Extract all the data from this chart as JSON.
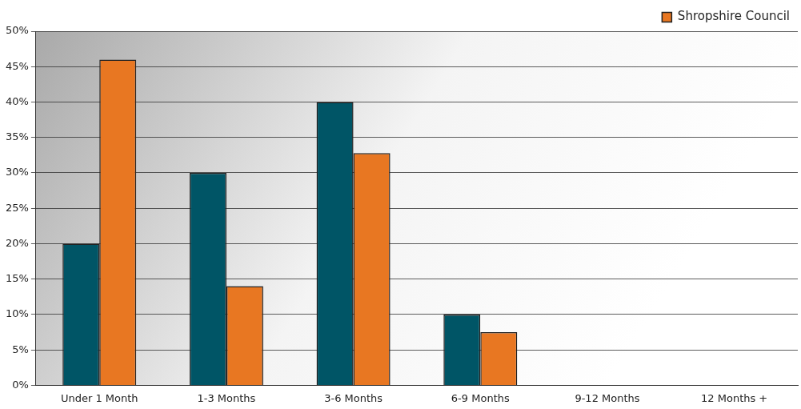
{
  "chart_data": {
    "type": "bar",
    "categories": [
      "Under 1 Month",
      "1-3 Months",
      "3-6 Months",
      "6-9 Months",
      "9-12 Months",
      "12 Months +"
    ],
    "series": [
      {
        "color": "#005566",
        "values": [
          20,
          30,
          40,
          10,
          0,
          0
        ]
      },
      {
        "name": "Shropshire Council",
        "color": "#e87722",
        "values": [
          46,
          14,
          32.8,
          7.5,
          0,
          0
        ]
      }
    ],
    "ylim": [
      0,
      50
    ],
    "yticks": [
      {
        "value": 0,
        "label": "0%"
      },
      {
        "value": 5,
        "label": "5%"
      },
      {
        "value": 10,
        "label": "10%"
      },
      {
        "value": 15,
        "label": "15%"
      },
      {
        "value": 20,
        "label": "20%"
      },
      {
        "value": 25,
        "label": "25%"
      },
      {
        "value": 30,
        "label": "30%"
      },
      {
        "value": 35,
        "label": "35%"
      },
      {
        "value": 40,
        "label": "40%"
      },
      {
        "value": 45,
        "label": "45%"
      },
      {
        "value": 50,
        "label": "50%"
      }
    ],
    "grid": "y",
    "legend": "top right"
  }
}
